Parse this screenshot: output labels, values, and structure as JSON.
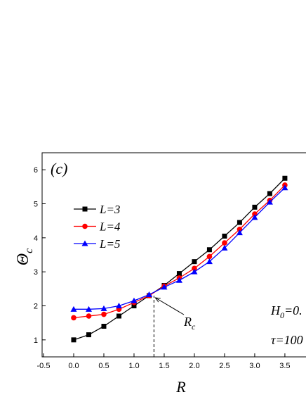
{
  "chart_data": {
    "type": "line",
    "panel_label": "(c)",
    "x_label": "R",
    "y_label": {
      "base": "Θ",
      "sub": "c"
    },
    "x": [
      0,
      0.25,
      0.5,
      0.75,
      1.0,
      1.25,
      1.5,
      1.75,
      2.0,
      2.25,
      2.5,
      2.75,
      3.0,
      3.25,
      3.5
    ],
    "series": [
      {
        "name": "L=3",
        "color": "#000000",
        "marker": "square",
        "values": [
          1.0,
          1.15,
          1.4,
          1.7,
          2.0,
          2.3,
          2.6,
          2.95,
          3.3,
          3.65,
          4.05,
          4.45,
          4.9,
          5.3,
          5.75
        ]
      },
      {
        "name": "L=4",
        "color": "#ff0000",
        "marker": "circle",
        "values": [
          1.65,
          1.7,
          1.75,
          1.9,
          2.1,
          2.3,
          2.58,
          2.82,
          3.1,
          3.45,
          3.85,
          4.25,
          4.7,
          5.1,
          5.55
        ]
      },
      {
        "name": "L=5",
        "color": "#0000ff",
        "marker": "triangle",
        "values": [
          1.9,
          1.9,
          1.92,
          2.0,
          2.15,
          2.33,
          2.55,
          2.75,
          3.0,
          3.3,
          3.7,
          4.15,
          4.6,
          5.05,
          5.47
        ]
      }
    ],
    "critical_R": 1.33,
    "critical_label": {
      "base": "R",
      "sub": "c"
    },
    "h_label": {
      "base": "H",
      "sub": "0",
      "tail": "=0."
    },
    "tau_label": "τ=100",
    "xlim": [
      -0.5,
      3.85
    ],
    "ylim": [
      0.5,
      6.5
    ],
    "xticks": [
      -0.5,
      {
        "value": 0,
        "label": "0.0"
      },
      0.5,
      {
        "value": 1,
        "label": "1.0"
      },
      1.5,
      {
        "value": 2,
        "label": "2.0"
      },
      2.5,
      {
        "value": 3,
        "label": "3.0"
      },
      3.5
    ],
    "yticks": [
      1,
      2,
      3,
      4,
      5,
      6
    ]
  }
}
